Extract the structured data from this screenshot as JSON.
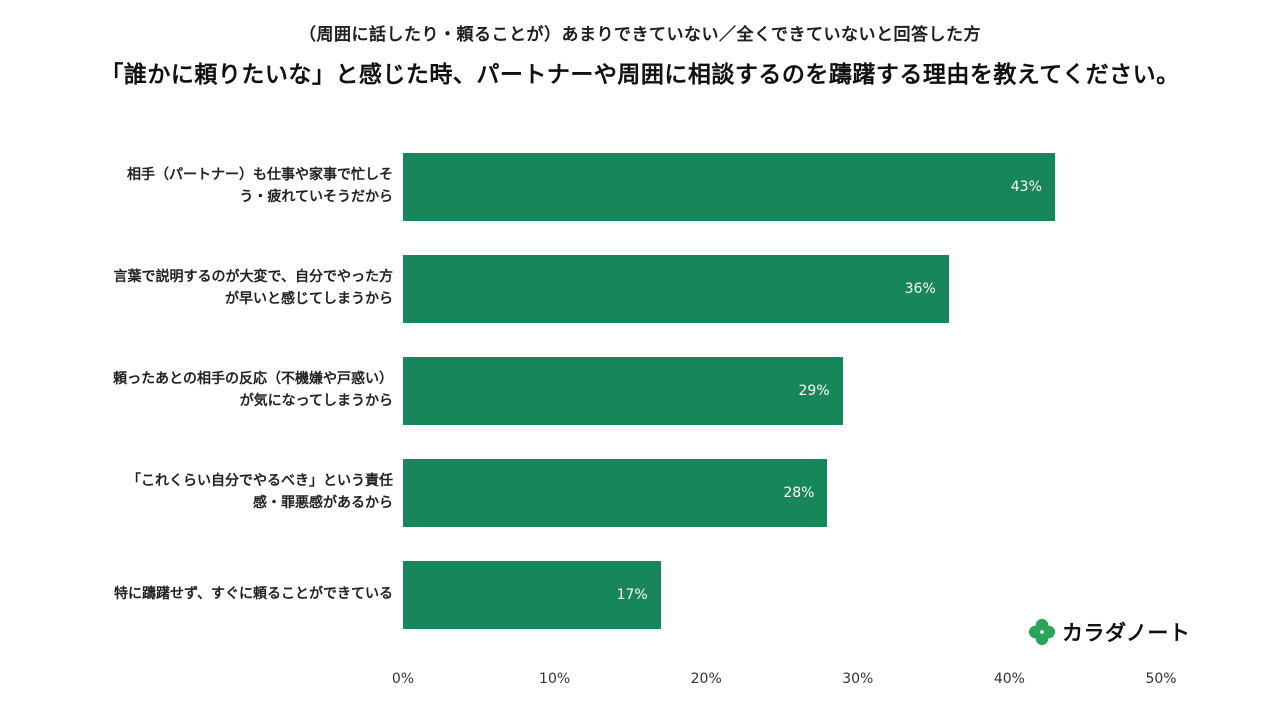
{
  "title": {
    "line1": "（周囲に話したり・頼ることが）あまりできていない／全くできていないと回答した方",
    "line2": "「誰かに頼りたいな」と感じた時、パートナーや周囲に相談するのを躊躇する理由を教えてください。"
  },
  "chart_data": {
    "type": "bar",
    "orientation": "horizontal",
    "title": "「誰かに頼りたいな」と感じた時、パートナーや周囲に相談するのを躊躇する理由を教えてください。",
    "subtitle": "（周囲に話したり・頼ることが）あまりできていない／全くできていないと回答した方",
    "categories": [
      "相手（パートナー）も仕事や家事で忙しそう・疲れていそうだから",
      "言葉で説明するのが大変で、自分でやった方が早いと感じてしまうから",
      "頼ったあとの相手の反応（不機嫌や戸惑い）が気になってしまうから",
      "「これくらい自分でやるべき」という責任感・罪悪感があるから",
      "特に躊躇せず、すぐに頼ることができている"
    ],
    "values": [
      43,
      36,
      29,
      28,
      17
    ],
    "value_labels": [
      "43%",
      "36%",
      "29%",
      "28%",
      "17%"
    ],
    "xlabel": "",
    "ylabel": "",
    "xlim": [
      0,
      50
    ],
    "x_ticks": [
      "0%",
      "10%",
      "20%",
      "30%",
      "40%",
      "50%"
    ],
    "grid": false,
    "legend": "none",
    "bar_color": "#17875B"
  },
  "logo": {
    "text": "カラダノート",
    "clover_color": "#2AA45B"
  }
}
